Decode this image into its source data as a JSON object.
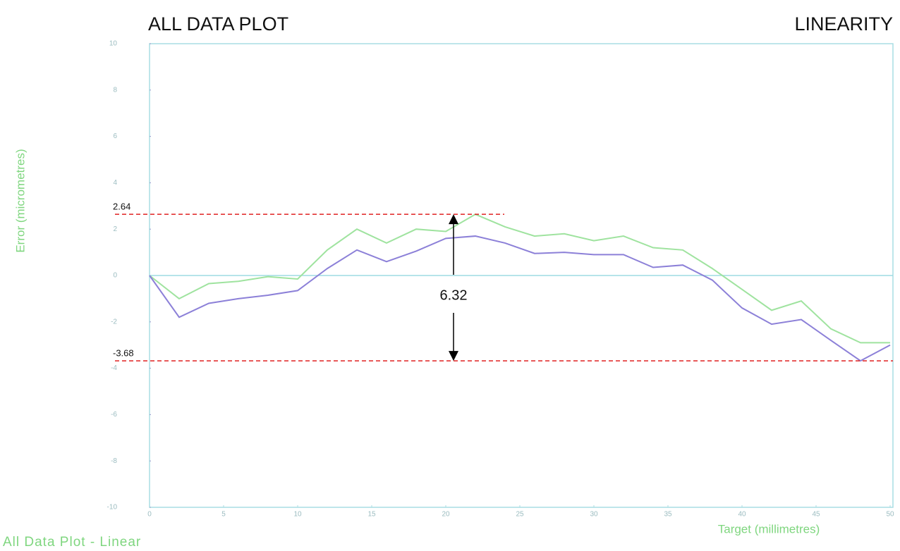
{
  "chart_data": {
    "type": "line",
    "title": "ALL DATA PLOT",
    "subtitle": "LINEARITY",
    "footer": "All Data Plot - Linear",
    "x_label": "Target (millimetres)",
    "y_label": "Error (micrometres)",
    "x": [
      0,
      2,
      4,
      6,
      8,
      10,
      12,
      14,
      16,
      18,
      20,
      22,
      24,
      26,
      28,
      30,
      32,
      34,
      36,
      38,
      40,
      42,
      44,
      46,
      48,
      50
    ],
    "series": [
      {
        "color": "#9fe39f",
        "values": [
          0,
          -1.0,
          -0.35,
          -0.25,
          -0.05,
          -0.15,
          1.1,
          2.0,
          1.4,
          2.0,
          1.9,
          2.64,
          2.1,
          1.7,
          1.8,
          1.5,
          1.7,
          1.2,
          1.1,
          0.3,
          -0.6,
          -1.5,
          -1.1,
          -2.3,
          -2.9,
          -2.9
        ]
      },
      {
        "color": "#8c80d8",
        "values": [
          0,
          -1.8,
          -1.2,
          -1.0,
          -0.85,
          -0.65,
          0.3,
          1.1,
          0.6,
          1.05,
          1.6,
          1.7,
          1.4,
          0.95,
          1.0,
          0.9,
          0.9,
          0.35,
          0.45,
          -0.2,
          -1.4,
          -2.1,
          -1.9,
          -2.8,
          -3.68,
          -3.0
        ]
      }
    ],
    "xlim": [
      0,
      50
    ],
    "xticks": [
      0,
      5,
      10,
      15,
      20,
      25,
      30,
      35,
      40,
      45,
      50
    ],
    "ylim": [
      -10,
      10
    ],
    "yticks": [
      -10,
      -8,
      -6,
      -4,
      -2,
      0,
      2,
      4,
      6,
      8,
      10
    ],
    "reference_lines": [
      2.64,
      -3.68
    ],
    "range_annotation": 6.32
  }
}
